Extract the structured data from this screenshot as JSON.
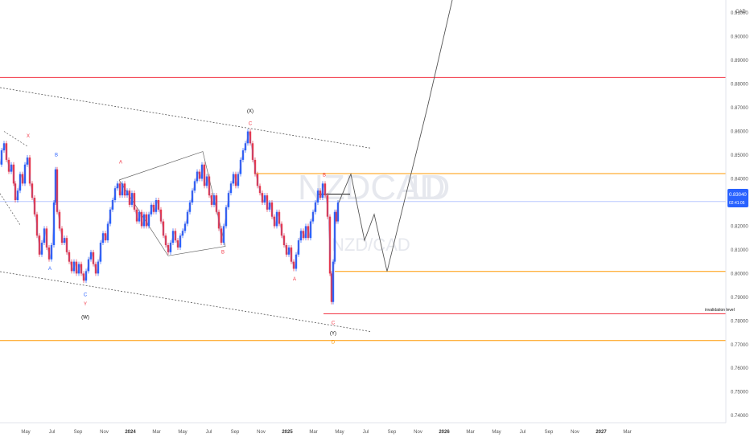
{
  "chart_data": {
    "type": "line",
    "symbol": "NZDCAD",
    "interval": "1D",
    "watermark_sub": "NZD/CAD",
    "currency": "CAD",
    "last_price": "0.83040",
    "countdown": "02:41:05",
    "yticks": [
      "0.91000",
      "0.90000",
      "0.89000",
      "0.88000",
      "0.87000",
      "0.86000",
      "0.85000",
      "0.84000",
      "0.83000",
      "0.82000",
      "0.81000",
      "0.80000",
      "0.79000",
      "0.78000",
      "0.77000",
      "0.76000",
      "0.75000",
      "0.74000"
    ],
    "xticks": [
      "May",
      "Jul",
      "Sep",
      "Nov",
      "2024",
      "Mar",
      "May",
      "Jul",
      "Sep",
      "Nov",
      "2025",
      "Mar",
      "May",
      "Jul",
      "Sep",
      "Nov",
      "2026",
      "Mar",
      "May",
      "Jul",
      "Sep",
      "Nov",
      "2027",
      "Mar"
    ],
    "ylim": [
      0.737,
      0.9155
    ],
    "hlines": [
      {
        "price": 0.8828,
        "color": "#f23645"
      },
      {
        "price": 0.8422,
        "color": "#ff9800"
      },
      {
        "price": 0.8304,
        "color": "#b9c8ff"
      },
      {
        "price": 0.8009,
        "color": "#ff9800"
      },
      {
        "price": 0.783,
        "color": "#f23645"
      },
      {
        "price": 0.7717,
        "color": "#ff9800"
      }
    ],
    "invalidation_label": "invalidation level",
    "price_path": [
      [
        0,
        0.846
      ],
      [
        3,
        0.852
      ],
      [
        6,
        0.855
      ],
      [
        9,
        0.848
      ],
      [
        12,
        0.843
      ],
      [
        15,
        0.846
      ],
      [
        18,
        0.838
      ],
      [
        20,
        0.831
      ],
      [
        23,
        0.835
      ],
      [
        26,
        0.842
      ],
      [
        29,
        0.838
      ],
      [
        32,
        0.846
      ],
      [
        35,
        0.849
      ],
      [
        38,
        0.838
      ],
      [
        41,
        0.832
      ],
      [
        44,
        0.825
      ],
      [
        47,
        0.816
      ],
      [
        50,
        0.808
      ],
      [
        53,
        0.813
      ],
      [
        56,
        0.819
      ],
      [
        59,
        0.811
      ],
      [
        62,
        0.806
      ],
      [
        65,
        0.812
      ],
      [
        68,
        0.83
      ],
      [
        70,
        0.844
      ],
      [
        72,
        0.826
      ],
      [
        75,
        0.819
      ],
      [
        78,
        0.813
      ],
      [
        81,
        0.815
      ],
      [
        84,
        0.809
      ],
      [
        87,
        0.805
      ],
      [
        90,
        0.801
      ],
      [
        93,
        0.805
      ],
      [
        96,
        0.8
      ],
      [
        99,
        0.804
      ],
      [
        102,
        0.8
      ],
      [
        105,
        0.797
      ],
      [
        108,
        0.801
      ],
      [
        111,
        0.806
      ],
      [
        114,
        0.809
      ],
      [
        117,
        0.804
      ],
      [
        120,
        0.8
      ],
      [
        123,
        0.805
      ],
      [
        126,
        0.813
      ],
      [
        129,
        0.817
      ],
      [
        132,
        0.814
      ],
      [
        135,
        0.821
      ],
      [
        138,
        0.827
      ],
      [
        141,
        0.831
      ],
      [
        144,
        0.836
      ],
      [
        147,
        0.838
      ],
      [
        150,
        0.833
      ],
      [
        153,
        0.838
      ],
      [
        156,
        0.833
      ],
      [
        159,
        0.835
      ],
      [
        162,
        0.829
      ],
      [
        165,
        0.834
      ],
      [
        168,
        0.827
      ],
      [
        171,
        0.822
      ],
      [
        174,
        0.826
      ],
      [
        177,
        0.82
      ],
      [
        180,
        0.825
      ],
      [
        183,
        0.82
      ],
      [
        186,
        0.825
      ],
      [
        189,
        0.829
      ],
      [
        192,
        0.826
      ],
      [
        195,
        0.831
      ],
      [
        198,
        0.827
      ],
      [
        201,
        0.822
      ],
      [
        204,
        0.816
      ],
      [
        207,
        0.812
      ],
      [
        210,
        0.809
      ],
      [
        213,
        0.813
      ],
      [
        216,
        0.818
      ],
      [
        219,
        0.814
      ],
      [
        222,
        0.811
      ],
      [
        225,
        0.816
      ],
      [
        228,
        0.818
      ],
      [
        231,
        0.821
      ],
      [
        234,
        0.826
      ],
      [
        237,
        0.83
      ],
      [
        240,
        0.835
      ],
      [
        243,
        0.839
      ],
      [
        246,
        0.843
      ],
      [
        249,
        0.84
      ],
      [
        252,
        0.846
      ],
      [
        255,
        0.837
      ],
      [
        258,
        0.841
      ],
      [
        261,
        0.833
      ],
      [
        264,
        0.829
      ],
      [
        267,
        0.833
      ],
      [
        270,
        0.826
      ],
      [
        273,
        0.819
      ],
      [
        276,
        0.813
      ],
      [
        279,
        0.82
      ],
      [
        282,
        0.828
      ],
      [
        285,
        0.834
      ],
      [
        288,
        0.838
      ],
      [
        291,
        0.842
      ],
      [
        294,
        0.837
      ],
      [
        297,
        0.842
      ],
      [
        300,
        0.848
      ],
      [
        303,
        0.852
      ],
      [
        306,
        0.855
      ],
      [
        309,
        0.86
      ],
      [
        312,
        0.855
      ],
      [
        315,
        0.848
      ],
      [
        318,
        0.842
      ],
      [
        321,
        0.837
      ],
      [
        324,
        0.834
      ],
      [
        327,
        0.83
      ],
      [
        330,
        0.833
      ],
      [
        333,
        0.827
      ],
      [
        336,
        0.83
      ],
      [
        339,
        0.824
      ],
      [
        342,
        0.82
      ],
      [
        345,
        0.826
      ],
      [
        348,
        0.821
      ],
      [
        351,
        0.816
      ],
      [
        354,
        0.812
      ],
      [
        357,
        0.808
      ],
      [
        360,
        0.811
      ],
      [
        363,
        0.805
      ],
      [
        366,
        0.802
      ],
      [
        369,
        0.808
      ],
      [
        372,
        0.814
      ],
      [
        375,
        0.818
      ],
      [
        378,
        0.815
      ],
      [
        381,
        0.82
      ],
      [
        384,
        0.815
      ],
      [
        387,
        0.822
      ],
      [
        390,
        0.826
      ],
      [
        393,
        0.83
      ],
      [
        396,
        0.835
      ],
      [
        399,
        0.832
      ],
      [
        402,
        0.838
      ],
      [
        405,
        0.833
      ],
      [
        408,
        0.824
      ],
      [
        411,
        0.8
      ],
      [
        413,
        0.788
      ],
      [
        415,
        0.805
      ],
      [
        417,
        0.826
      ],
      [
        419,
        0.822
      ],
      [
        421,
        0.83
      ]
    ],
    "projection_path": [
      [
        421,
        0.83
      ],
      [
        436,
        0.842
      ],
      [
        453,
        0.814
      ],
      [
        465,
        0.825
      ],
      [
        481,
        0.8009
      ],
      [
        531,
        0.87
      ],
      [
        562,
        0.9155
      ]
    ],
    "channel_lines": [
      [
        [
          0,
          0.8785
        ],
        [
          460,
          0.853
        ]
      ],
      [
        [
          0,
          0.8008
        ],
        [
          460,
          0.7755
        ]
      ]
    ],
    "triangles": [
      [
        [
          148,
          0.8395
        ],
        [
          252,
          0.8515
        ],
        [
          280,
          0.8115
        ],
        [
          209,
          0.8075
        ]
      ],
      [
        [
          5,
          0.86
        ],
        [
          35,
          0.8535
        ]
      ],
      [
        [
          0,
          0.8338
        ],
        [
          25,
          0.8205
        ]
      ]
    ],
    "b_line": [
      [
        395,
        0.8335
      ],
      [
        435,
        0.8335
      ]
    ],
    "wave_labels": [
      {
        "text": "X",
        "x": 35,
        "price": 0.8575,
        "color": "#f23645"
      },
      {
        "text": "B",
        "x": 70,
        "price": 0.8495,
        "color": "#2962ff"
      },
      {
        "text": "A",
        "x": 62,
        "price": 0.8015,
        "color": "#2962ff"
      },
      {
        "text": "C",
        "x": 106,
        "price": 0.7905,
        "color": "#2962ff"
      },
      {
        "text": "Y",
        "x": 106,
        "price": 0.7865,
        "color": "#f23645"
      },
      {
        "text": "(W)",
        "x": 106,
        "price": 0.781,
        "color": "#000000"
      },
      {
        "text": "A",
        "x": 150,
        "price": 0.8465,
        "color": "#f23645"
      },
      {
        "text": "B",
        "x": 277,
        "price": 0.8085,
        "color": "#f23645"
      },
      {
        "text": "(X)",
        "x": 311,
        "price": 0.868,
        "color": "#000000"
      },
      {
        "text": "C",
        "x": 311,
        "price": 0.8628,
        "color": "#f23645"
      },
      {
        "text": "B",
        "x": 403,
        "price": 0.841,
        "color": "#f23645"
      },
      {
        "text": "A",
        "x": 366,
        "price": 0.797,
        "color": "#f23645"
      },
      {
        "text": "C",
        "x": 414,
        "price": 0.7785,
        "color": "#f23645"
      },
      {
        "text": "(Y)",
        "x": 414,
        "price": 0.7742,
        "color": "#000000"
      },
      {
        "text": "D",
        "x": 414,
        "price": 0.7705,
        "color": "#ff9800"
      }
    ]
  }
}
